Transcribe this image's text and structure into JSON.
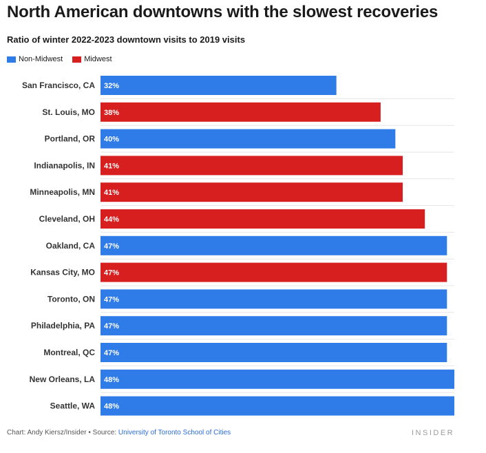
{
  "title": "North American downtowns with the slowest recoveries",
  "subtitle": "Ratio of winter 2022-2023 downtown visits to 2019 visits",
  "legend": [
    {
      "label": "Non-Midwest",
      "color": "#2f7be8"
    },
    {
      "label": "Midwest",
      "color": "#d81f1f"
    }
  ],
  "footer": {
    "credit": "Chart: Andy Kiersz/Insider • Source: ",
    "source": "University of Toronto School of Cities"
  },
  "brand": "INSIDER",
  "chart_data": {
    "type": "bar",
    "orientation": "horizontal",
    "categories": [
      "San Francisco, CA",
      "St. Louis, MO",
      "Portland, OR",
      "Indianapolis, IN",
      "Minneapolis, MN",
      "Cleveland, OH",
      "Oakland, CA",
      "Kansas City, MO",
      "Toronto, ON",
      "Philadelphia, PA",
      "Montreal, QC",
      "New Orleans, LA",
      "Seattle, WA"
    ],
    "values": [
      32,
      38,
      40,
      41,
      41,
      44,
      47,
      47,
      47,
      47,
      47,
      48,
      48
    ],
    "value_labels": [
      "32%",
      "38%",
      "40%",
      "41%",
      "41%",
      "44%",
      "47%",
      "47%",
      "47%",
      "47%",
      "47%",
      "48%",
      "48%"
    ],
    "group": [
      "Non-Midwest",
      "Midwest",
      "Non-Midwest",
      "Midwest",
      "Midwest",
      "Midwest",
      "Non-Midwest",
      "Midwest",
      "Non-Midwest",
      "Non-Midwest",
      "Non-Midwest",
      "Non-Midwest",
      "Non-Midwest"
    ],
    "xlim": [
      0,
      48
    ],
    "grid": true
  }
}
